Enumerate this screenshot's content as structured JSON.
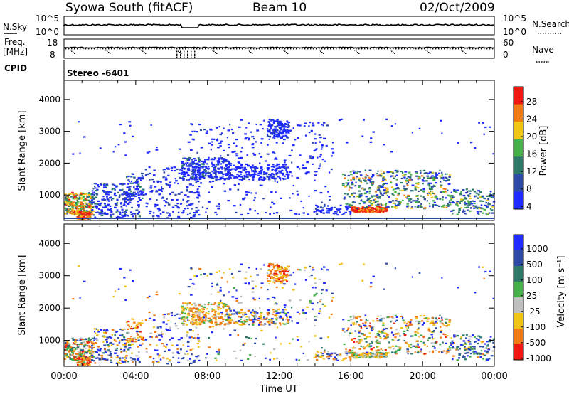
{
  "header": {
    "title": "Syowa South (fitACF)",
    "beam": "Beam 10",
    "date": "02/Oct/2009"
  },
  "top_panels": {
    "nsky_label": "N.Sky",
    "nsearch_label": "N.Search",
    "nsky_ticks": [
      "10^5",
      "10^0"
    ],
    "freq_label_line1": "Freq.",
    "freq_label_line2": "[MHz]",
    "freq_ticks": [
      "18",
      "8"
    ],
    "nave_label": "Nave",
    "nave_ticks": [
      "60",
      "0"
    ],
    "cpid_label": "CPID",
    "cpid_value": "Stereo -6401"
  },
  "chart_data": [
    {
      "type": "heatmap",
      "name": "power-panel",
      "ylabel": "Slant Range [km]",
      "xlabel": "",
      "x_range": [
        "00:00",
        "24:00"
      ],
      "y_ticks": [
        1000,
        2000,
        3000,
        4000
      ],
      "ylim": [
        200,
        4600
      ],
      "colorbar_label": "Power [dB]",
      "colorbar_ticks": [
        "4",
        "8",
        "12",
        "16",
        "20",
        "24",
        "28"
      ],
      "colorbar_colors": [
        "#1f2bff",
        "#2e4aa8",
        "#2e7a6a",
        "#46b04a",
        "#f2c31a",
        "#f07a14",
        "#ee1a12"
      ]
    },
    {
      "type": "heatmap",
      "name": "velocity-panel",
      "ylabel": "Slant Range [km]",
      "xlabel": "Time UT",
      "x_ticks": [
        "00:00",
        "04:00",
        "08:00",
        "12:00",
        "16:00",
        "20:00",
        "00:00"
      ],
      "y_ticks": [
        1000,
        2000,
        3000,
        4000
      ],
      "ylim": [
        200,
        4600
      ],
      "colorbar_label": "Velocity [m s⁻¹]",
      "colorbar_ticks": [
        "1000",
        "500",
        "100",
        "25",
        "-25",
        "-100",
        "-500",
        "-1000"
      ],
      "colorbar_colors": [
        "#1f2bff",
        "#2e4aa8",
        "#2e7a6a",
        "#46b04a",
        "#bfbfbf",
        "#f2c31a",
        "#f07a14",
        "#ee1a12"
      ]
    }
  ]
}
